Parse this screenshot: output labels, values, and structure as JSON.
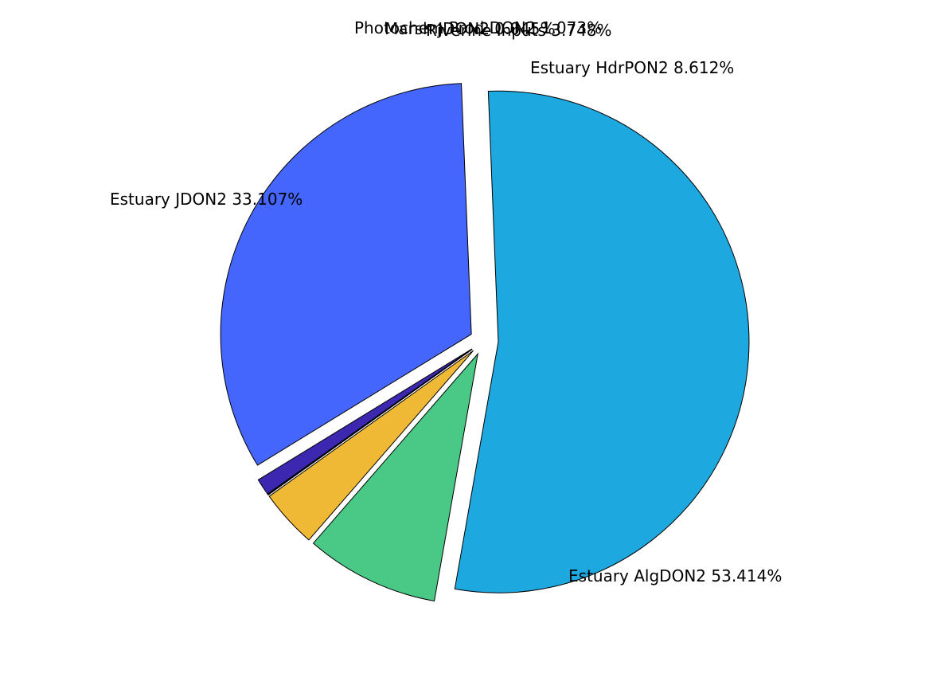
{
  "chart_data": {
    "type": "pie",
    "title": "",
    "slices": [
      {
        "label": "Estuary AlgDON2 53.414%",
        "value": 53.414,
        "color": "#1da8df",
        "exploded": true
      },
      {
        "label": "Estuary HdrPON2 8.612%",
        "value": 8.612,
        "color": "#4ac986",
        "exploded": true
      },
      {
        "label": "Riverine Inputs 3.748%",
        "value": 3.748,
        "color": "#f0b935",
        "exploded": true
      },
      {
        "label": "Marsh JDON2 0.045%",
        "value": 0.045,
        "color": "#e9d822",
        "exploded": true
      },
      {
        "label": "Photochem Prod DON2 1.073%",
        "value": 1.073,
        "color": "#3c28b0",
        "exploded": true
      },
      {
        "label": "Estuary JDON2 33.107%",
        "value": 33.107,
        "color": "#4466fc",
        "exploded": true
      }
    ],
    "legend": "none"
  }
}
